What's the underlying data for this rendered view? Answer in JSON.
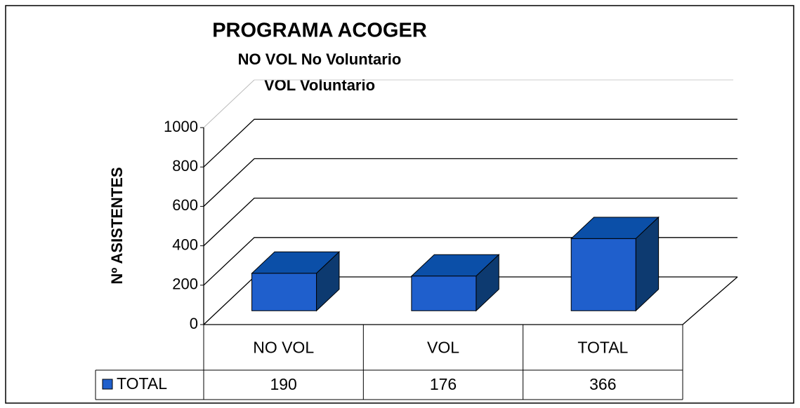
{
  "chart_data": {
    "type": "bar3d",
    "title": "PROGRAMA ACOGER",
    "subtitle": [
      "NO VOL No Voluntario",
      "VOL Voluntario"
    ],
    "y_label": "Nº ASISTENTES",
    "categories": [
      "NO VOL",
      "VOL",
      "TOTAL"
    ],
    "series": [
      {
        "name": "TOTAL",
        "color": "#1f5fcc",
        "values": [
          190,
          176,
          366
        ]
      }
    ],
    "ylim": [
      0,
      1000
    ],
    "yticks": [
      0,
      200,
      400,
      600,
      800,
      1000
    ],
    "grid": true
  }
}
